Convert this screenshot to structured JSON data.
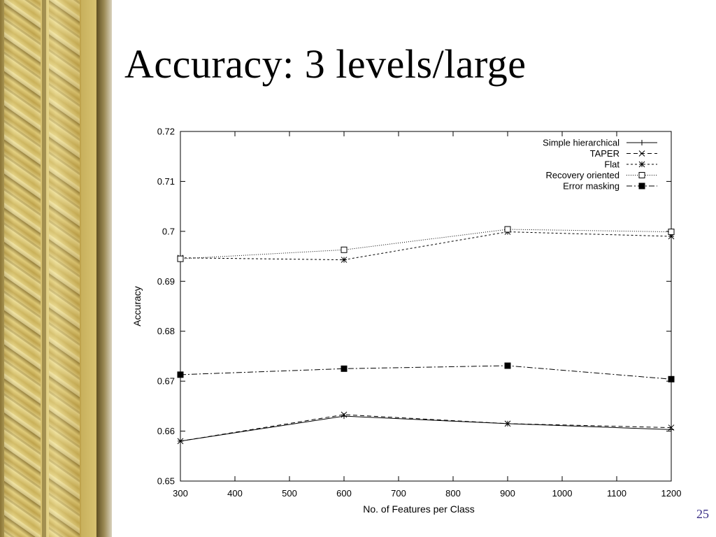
{
  "slide": {
    "title": "Accuracy: 3 levels/large",
    "page_number": "25"
  },
  "chart_data": {
    "type": "line",
    "title": "",
    "xlabel": "No. of Features per Class",
    "ylabel": "Accuracy",
    "xlim": [
      300,
      1200
    ],
    "ylim": [
      0.65,
      0.72
    ],
    "xticks": [
      300,
      400,
      500,
      600,
      700,
      800,
      900,
      1000,
      1100,
      1200
    ],
    "yticks": [
      0.65,
      0.66,
      0.67,
      0.68,
      0.69,
      0.7,
      0.71,
      0.72
    ],
    "xtick_labels": [
      "300",
      "400",
      "500",
      "600",
      "700",
      "800",
      "900",
      "1000",
      "1100",
      "1200"
    ],
    "ytick_labels": [
      "0.65",
      "0.66",
      "0.67",
      "0.68",
      "0.69",
      "0.7",
      "0.71",
      "0.72"
    ],
    "grid": false,
    "legend_position": "top-right",
    "x": [
      300,
      600,
      900,
      1200
    ],
    "series": [
      {
        "name": "Simple hierarchical",
        "values": [
          0.658,
          0.663,
          0.6615,
          0.6603
        ],
        "marker": "plus",
        "dash": "solid"
      },
      {
        "name": "TAPER",
        "values": [
          0.658,
          0.6633,
          0.6615,
          0.6607
        ],
        "marker": "x",
        "dash": "dashed"
      },
      {
        "name": "Flat",
        "values": [
          0.6947,
          0.6943,
          0.6999,
          0.699
        ],
        "marker": "star",
        "dash": "shortdash"
      },
      {
        "name": "Recovery oriented",
        "values": [
          0.6945,
          0.6963,
          0.7004,
          0.6999
        ],
        "marker": "square-open",
        "dash": "dotted"
      },
      {
        "name": "Error masking",
        "values": [
          0.6713,
          0.6725,
          0.6731,
          0.6704
        ],
        "marker": "square-filled",
        "dash": "dashdot"
      }
    ]
  }
}
